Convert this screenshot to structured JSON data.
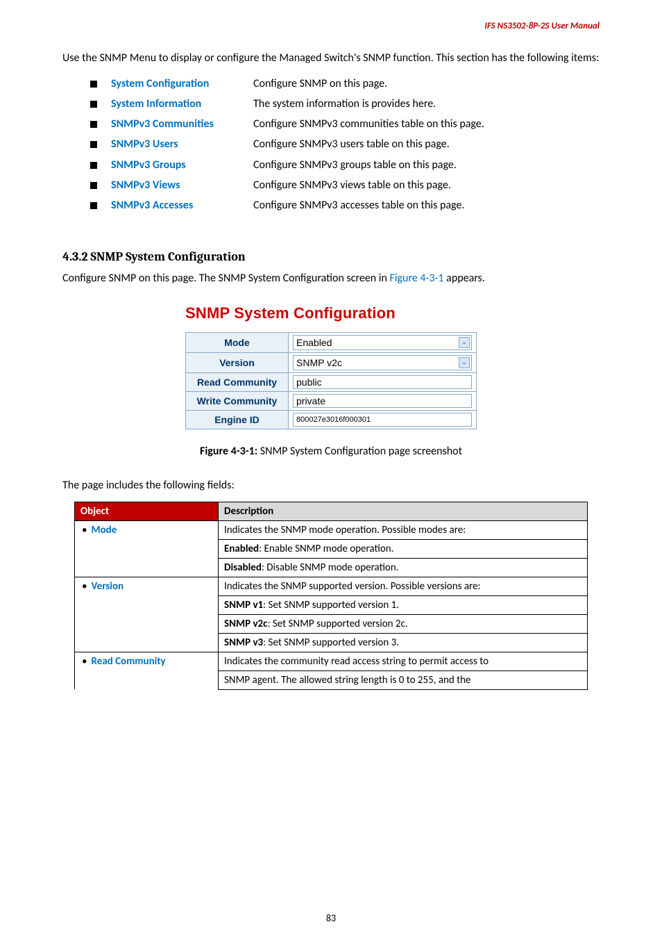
{
  "header": {
    "doc_title": "IFS  NS3502-8P-2S  User  Manual",
    "color": "#c00000"
  },
  "intro": "Use the SNMP Menu to display or configure the Managed Switch's SNMP function. This section has the following items:",
  "items": [
    {
      "label": "System Configuration",
      "desc": "Configure SNMP on this page."
    },
    {
      "label": "System Information",
      "desc": "The system information is provides here."
    },
    {
      "label": "SNMPv3 Communities",
      "desc": "Configure SNMPv3 communities table on this page."
    },
    {
      "label": "SNMPv3 Users",
      "desc": "Configure SNMPv3 users table on this page."
    },
    {
      "label": "SNMPv3 Groups",
      "desc": "Configure SNMPv3 groups table on this page."
    },
    {
      "label": "SNMPv3 Views",
      "desc": "Configure SNMPv3 views table on this page."
    },
    {
      "label": "SNMPv3 Accesses",
      "desc": "Configure SNMPv3 accesses table on this page."
    }
  ],
  "item_label_color": "#0070c0",
  "section": {
    "heading": "4.3.2 SNMP System Configuration",
    "paragraph_pre": "Configure SNMP on this page. The SNMP System Configuration screen in ",
    "figref": "Figure 4-3-1",
    "paragraph_post": " appears."
  },
  "snmp_config": {
    "title": "SNMP System Configuration",
    "title_color": "#cc0000",
    "header_bg": "#e8f0f8",
    "header_fg": "#003366",
    "border_color": "#88a8c8",
    "rows": [
      {
        "label": "Mode",
        "type": "select",
        "value": "Enabled"
      },
      {
        "label": "Version",
        "type": "select",
        "value": "SNMP v2c"
      },
      {
        "label": "Read Community",
        "type": "input",
        "value": "public"
      },
      {
        "label": "Write Community",
        "type": "input",
        "value": "private"
      },
      {
        "label": "Engine ID",
        "type": "input_small",
        "value": "800027e3016f000301"
      }
    ]
  },
  "figure_caption": {
    "bold": "Figure 4-3-1:",
    "rest": " SNMP System Configuration page screenshot"
  },
  "fields_intro": "The page includes the following fields:",
  "obj_table": {
    "head": {
      "col1": "Object",
      "col2": "Description"
    },
    "head_bg1": "#c00000",
    "head_fg1": "#ffffff",
    "head_bg2": "#d9d9d9",
    "groups": [
      {
        "object": "Mode",
        "lines": [
          "Indicates the SNMP mode operation. Possible modes are:",
          "<b>Enabled</b>: Enable SNMP mode operation.",
          "<b>Disabled</b>: Disable SNMP mode operation."
        ]
      },
      {
        "object": "Version",
        "lines": [
          "Indicates the SNMP supported version. Possible versions are:",
          "<b>SNMP v1</b>: Set SNMP supported version 1.",
          "<b>SNMP v2c</b>: Set SNMP supported version 2c.",
          "<b>SNMP v3</b>: Set SNMP supported version 3."
        ]
      },
      {
        "object": "Read Community",
        "lines": [
          "Indicates the community read access string to permit access to",
          "SNMP agent. The allowed string length is 0 to 255, and the"
        ]
      }
    ]
  },
  "page_number": "83"
}
